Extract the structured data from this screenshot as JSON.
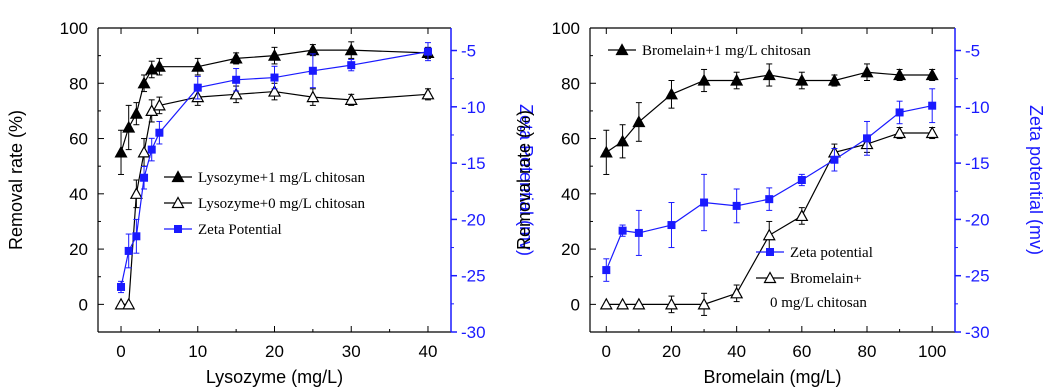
{
  "chart_data": [
    {
      "type": "line",
      "xlabel": "Lysozyme (mg/L)",
      "ylabel": "Removal rate (%)",
      "y2label": "Zeta Potential (mv)",
      "xlim": [
        -3,
        43
      ],
      "ylim": [
        -10,
        100
      ],
      "y2lim": [
        -30,
        -3
      ],
      "xticks": [
        0,
        10,
        20,
        30,
        40
      ],
      "yticks": [
        0,
        20,
        40,
        60,
        80,
        100
      ],
      "y2ticks": [
        -5,
        -10,
        -15,
        -20,
        -25,
        -30
      ],
      "legend_position": "lower-right",
      "series": [
        {
          "name": "Lysozyme+1 mg/L chitosan",
          "axis": "left",
          "color": "#000000",
          "marker": "triangle-filled",
          "x": [
            0,
            1,
            2,
            3,
            4,
            5,
            10,
            15,
            20,
            25,
            30,
            40
          ],
          "y": [
            55,
            64,
            69,
            80,
            85,
            86,
            86,
            89,
            90,
            92,
            92,
            91
          ],
          "err": [
            8,
            8,
            4,
            3,
            3,
            3,
            3,
            2,
            3,
            2,
            3,
            2
          ]
        },
        {
          "name": "Lysozyme+0 mg/L chitosan",
          "axis": "left",
          "color": "#000000",
          "marker": "triangle-open",
          "x": [
            0,
            1,
            2,
            3,
            4,
            5,
            10,
            15,
            20,
            25,
            30,
            40
          ],
          "y": [
            0,
            0,
            40,
            55,
            70,
            72,
            75,
            76,
            77,
            75,
            74,
            76
          ],
          "err": [
            0,
            0,
            5,
            5,
            4,
            3,
            3,
            3,
            3,
            3,
            2,
            2
          ]
        },
        {
          "name": "Zeta Potential",
          "axis": "right",
          "color": "#1a1aff",
          "marker": "square-filled",
          "x": [
            0,
            1,
            2,
            3,
            4,
            5,
            10,
            15,
            20,
            25,
            30,
            40
          ],
          "y": [
            -26,
            -22.8,
            -21.5,
            -16.3,
            -13.8,
            -12.3,
            -8.3,
            -7.6,
            -7.4,
            -6.8,
            -6.3,
            -5.1
          ],
          "err": [
            0.5,
            1.5,
            1.5,
            1,
            1,
            1,
            1,
            1,
            1,
            1.5,
            0.5,
            0.8
          ]
        }
      ]
    },
    {
      "type": "line",
      "xlabel": "Bromelain (mg/L)",
      "ylabel": "Removal rate (%)",
      "y2label": "Zeta potential (mv)",
      "xlim": [
        -5,
        107
      ],
      "ylim": [
        -10,
        100
      ],
      "y2lim": [
        -30,
        -3
      ],
      "xticks": [
        0,
        20,
        40,
        60,
        80,
        100
      ],
      "yticks": [
        0,
        20,
        40,
        60,
        80,
        100
      ],
      "y2ticks": [
        -5,
        -10,
        -15,
        -20,
        -25,
        -30
      ],
      "legend_position": "top-left / lower-right",
      "series": [
        {
          "name": "Bromelain+1 mg/L chitosan",
          "axis": "left",
          "color": "#000000",
          "marker": "triangle-filled",
          "x": [
            0,
            5,
            10,
            20,
            30,
            40,
            50,
            60,
            70,
            80,
            90,
            100
          ],
          "y": [
            55,
            59,
            66,
            76,
            81,
            81,
            83,
            81,
            81,
            84,
            83,
            83
          ],
          "err": [
            8,
            6,
            7,
            5,
            4,
            3,
            4,
            3,
            2,
            3,
            2,
            2
          ]
        },
        {
          "name": "Bromelain+\n0 mg/L chitosan",
          "axis": "left",
          "color": "#000000",
          "marker": "triangle-open",
          "x": [
            0,
            5,
            10,
            20,
            30,
            40,
            50,
            60,
            70,
            80,
            90,
            100
          ],
          "y": [
            0,
            0,
            0,
            0,
            0,
            4,
            25,
            32,
            55,
            58,
            62,
            62
          ],
          "err": [
            0,
            0,
            0,
            3,
            4,
            3,
            5,
            3,
            3,
            3,
            2,
            2
          ]
        },
        {
          "name": "Zeta potential",
          "axis": "right",
          "color": "#1a1aff",
          "marker": "square-filled",
          "x": [
            0,
            5,
            10,
            20,
            30,
            40,
            50,
            60,
            70,
            80,
            90,
            100
          ],
          "y": [
            -24.5,
            -21,
            -21.2,
            -20.5,
            -18.5,
            -18.8,
            -18.2,
            -16.5,
            -14.7,
            -12.8,
            -10.5,
            -9.9
          ],
          "err": [
            1,
            0.5,
            2,
            2,
            2.5,
            1.5,
            1,
            0.5,
            1,
            1.5,
            1,
            1.5
          ]
        }
      ]
    }
  ]
}
